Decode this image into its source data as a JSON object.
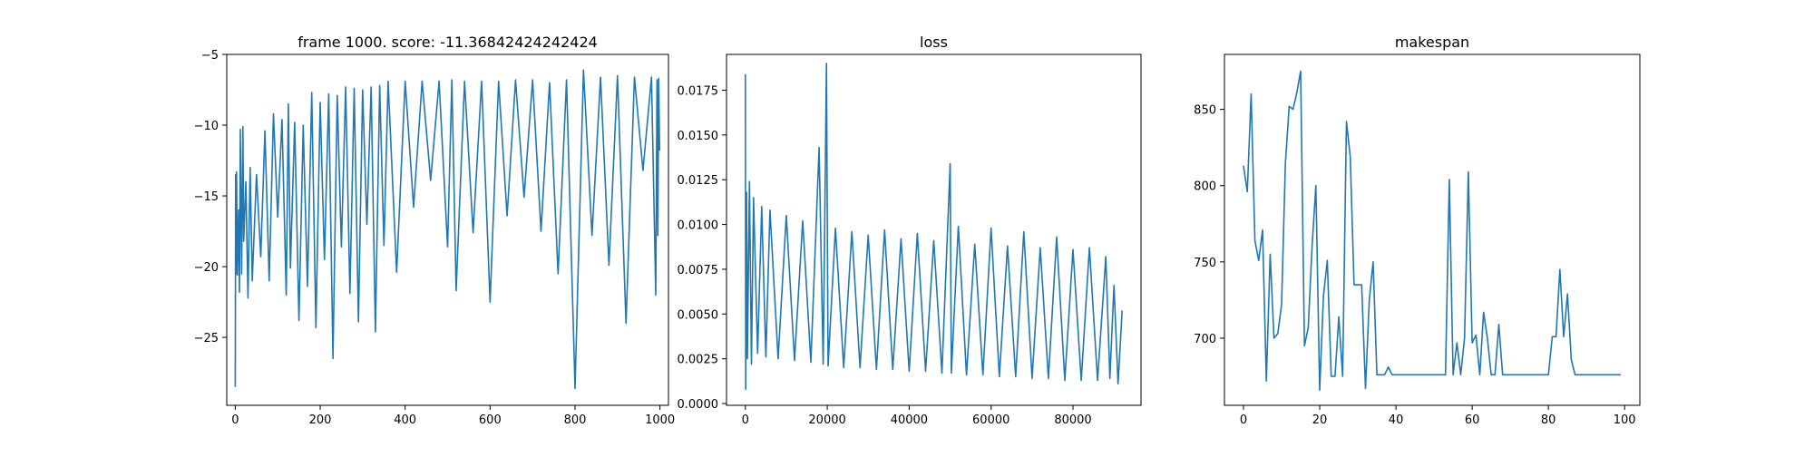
{
  "chart_data": [
    {
      "type": "line",
      "title": "frame 1000. score: -11.36842424242424",
      "xlabel": "",
      "ylabel": "",
      "xlim": [
        -20,
        1020
      ],
      "ylim": [
        -29.8,
        -5
      ],
      "xticks": [
        0,
        200,
        400,
        600,
        800,
        1000
      ],
      "yticks": [
        -25,
        -20,
        -15,
        -10,
        -5
      ],
      "ytick_labels": [
        "−25",
        "−20",
        "−15",
        "−10",
        "−5"
      ],
      "grid": false,
      "line_color": "#1f77b4",
      "series": [
        {
          "x": [
            0,
            1,
            2,
            3,
            5,
            8,
            10,
            12,
            15,
            18,
            20,
            25,
            30,
            35,
            40,
            50,
            60,
            70,
            80,
            90,
            100,
            110,
            120,
            125,
            130,
            140,
            150,
            160,
            170,
            180,
            190,
            200,
            210,
            220,
            230,
            240,
            250,
            260,
            270,
            280,
            290,
            300,
            310,
            320,
            330,
            340,
            350,
            360,
            380,
            400,
            420,
            440,
            460,
            480,
            500,
            510,
            520,
            540,
            560,
            580,
            600,
            620,
            640,
            660,
            680,
            700,
            720,
            740,
            760,
            780,
            800,
            820,
            840,
            860,
            880,
            900,
            920,
            940,
            960,
            980,
            990,
            993,
            995,
            997,
            999
          ],
          "y": [
            -28.5,
            -13.5,
            -20.5,
            -13.3,
            -20.6,
            -16,
            -21.8,
            -10.3,
            -20.5,
            -10.1,
            -18.2,
            -14,
            -22.2,
            -13,
            -21,
            -13.5,
            -19.3,
            -10.4,
            -21,
            -9.2,
            -16.5,
            -9.6,
            -22,
            -8.5,
            -20.1,
            -9.8,
            -23.8,
            -10,
            -21.4,
            -7.7,
            -24.3,
            -8.4,
            -19.5,
            -7.8,
            -26.5,
            -7.9,
            -18.6,
            -7.3,
            -21.9,
            -7.4,
            -23.9,
            -7.5,
            -17,
            -7.3,
            -24.6,
            -7.2,
            -18.5,
            -6.9,
            -20.4,
            -6.9,
            -15.8,
            -6.9,
            -13.9,
            -6.9,
            -18.6,
            -6.8,
            -21.7,
            -6.9,
            -17.6,
            -6.9,
            -22.5,
            -6.9,
            -16.4,
            -6.8,
            -15.1,
            -6.8,
            -17.5,
            -7,
            -20.5,
            -6.8,
            -28.6,
            -6.1,
            -17.8,
            -6.6,
            -19.9,
            -6.5,
            -24,
            -6.6,
            -13.2,
            -6.6,
            -22,
            -6.8,
            -17.8,
            -6.7,
            -11.8
          ]
        }
      ]
    },
    {
      "type": "line",
      "title": "loss",
      "xlabel": "",
      "ylabel": "",
      "xlim": [
        -4600,
        96600
      ],
      "ylim": [
        -0.0001,
        0.0195
      ],
      "xticks": [
        0,
        20000,
        40000,
        60000,
        80000
      ],
      "yticks": [
        0.0,
        0.0025,
        0.005,
        0.0075,
        0.01,
        0.0125,
        0.015,
        0.0175
      ],
      "ytick_labels": [
        "0.0000",
        "0.0025",
        "0.0050",
        "0.0075",
        "0.0100",
        "0.0125",
        "0.0150",
        "0.0175"
      ],
      "grid": false,
      "line_color": "#1f77b4",
      "series": [
        {
          "x": [
            0,
            100,
            300,
            500,
            1000,
            1500,
            2000,
            3000,
            4000,
            5000,
            6000,
            8000,
            10000,
            12000,
            14000,
            16000,
            18000,
            19000,
            19800,
            20200,
            22000,
            24000,
            26000,
            28000,
            30000,
            32000,
            34000,
            36000,
            38000,
            40000,
            42000,
            44000,
            46000,
            48000,
            50000,
            50300,
            52000,
            54000,
            56000,
            58000,
            60000,
            62000,
            64000,
            66000,
            68000,
            70000,
            72000,
            74000,
            76000,
            78000,
            80000,
            82000,
            84000,
            86000,
            88000,
            89000,
            90000,
            91000,
            92000
          ],
          "y": [
            0.0184,
            0.0008,
            0.0118,
            0.0025,
            0.0124,
            0.0022,
            0.0115,
            0.0028,
            0.011,
            0.0026,
            0.0108,
            0.0025,
            0.0105,
            0.0024,
            0.0102,
            0.0023,
            0.0143,
            0.0022,
            0.019,
            0.0021,
            0.0098,
            0.002,
            0.0096,
            0.002,
            0.0094,
            0.0019,
            0.0097,
            0.0019,
            0.0092,
            0.0018,
            0.0095,
            0.0018,
            0.0091,
            0.0017,
            0.0134,
            0.0017,
            0.0099,
            0.0016,
            0.0089,
            0.0016,
            0.0098,
            0.0015,
            0.0088,
            0.0015,
            0.0096,
            0.0014,
            0.0087,
            0.0014,
            0.0093,
            0.0013,
            0.0086,
            0.0013,
            0.0087,
            0.0013,
            0.0082,
            0.0014,
            0.0066,
            0.0011,
            0.0052
          ]
        }
      ]
    },
    {
      "type": "line",
      "title": "makespan",
      "xlabel": "",
      "ylabel": "",
      "xlim": [
        -5,
        104
      ],
      "ylim": [
        656,
        886
      ],
      "xticks": [
        0,
        20,
        40,
        60,
        80,
        100
      ],
      "yticks": [
        700,
        750,
        800,
        850
      ],
      "ytick_labels": [
        "700",
        "750",
        "800",
        "850"
      ],
      "grid": false,
      "line_color": "#1f77b4",
      "series": [
        {
          "x": [
            0,
            1,
            2,
            3,
            4,
            5,
            6,
            7,
            8,
            9,
            10,
            11,
            12,
            13,
            14,
            15,
            16,
            17,
            18,
            19,
            20,
            21,
            22,
            23,
            24,
            25,
            26,
            27,
            28,
            29,
            30,
            31,
            32,
            33,
            34,
            35,
            36,
            37,
            38,
            39,
            40,
            41,
            42,
            43,
            44,
            45,
            46,
            47,
            48,
            49,
            50,
            51,
            52,
            53,
            54,
            55,
            56,
            57,
            58,
            59,
            60,
            61,
            62,
            63,
            64,
            65,
            66,
            67,
            68,
            69,
            70,
            71,
            72,
            73,
            74,
            75,
            76,
            77,
            78,
            79,
            80,
            81,
            82,
            83,
            84,
            85,
            86,
            87,
            88,
            89,
            90,
            91,
            92,
            93,
            94,
            95,
            96,
            97,
            98,
            99
          ],
          "y": [
            813,
            796,
            860,
            764,
            751,
            771,
            672,
            755,
            700,
            703,
            722,
            815,
            852,
            850,
            861,
            875,
            695,
            707,
            760,
            800,
            666,
            728,
            751,
            675,
            675,
            714,
            675,
            842,
            819,
            735,
            735,
            735,
            667,
            725,
            750,
            676,
            676,
            676,
            681,
            676,
            676,
            676,
            676,
            676,
            676,
            676,
            676,
            676,
            676,
            676,
            676,
            676,
            676,
            676,
            804,
            676,
            697,
            676,
            700,
            809,
            697,
            702,
            676,
            717,
            700,
            676,
            676,
            709,
            676,
            676,
            676,
            676,
            676,
            676,
            676,
            676,
            676,
            676,
            676,
            676,
            676,
            701,
            701,
            745,
            701,
            729,
            686,
            676,
            676,
            676,
            676,
            676,
            676,
            676,
            676,
            676,
            676,
            676,
            676,
            676
          ]
        }
      ]
    }
  ]
}
